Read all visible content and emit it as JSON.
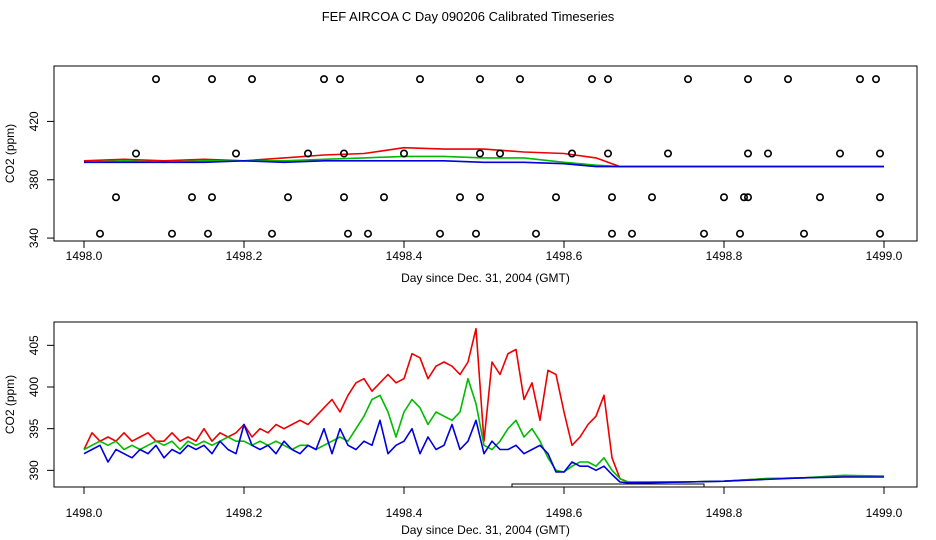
{
  "title": "FEF AIRCOA C  Day 090206  Calibrated Timeseries",
  "chart_data": [
    {
      "type": "line",
      "xlabel": "Day since Dec. 31, 2004 (GMT)",
      "ylabel": "CO2 (ppm)",
      "xlim": [
        1498.0,
        1499.0
      ],
      "ylim": [
        338,
        458
      ],
      "x_ticks": [
        "1498.0",
        "1498.2",
        "1498.4",
        "1498.6",
        "1498.8",
        "1499.0"
      ],
      "y_ticks": [
        "340",
        "380",
        "420"
      ],
      "colors": [
        "#ee0000",
        "#00bb00",
        "#0000dd"
      ],
      "series": [
        {
          "color": "#ee0000",
          "x": [
            1498.0,
            1498.05,
            1498.1,
            1498.15,
            1498.2,
            1498.25,
            1498.3,
            1498.35,
            1498.4,
            1498.45,
            1498.5,
            1498.55,
            1498.6,
            1498.64,
            1498.67,
            1498.7,
            1498.8,
            1498.9,
            1499.0
          ],
          "y": [
            393,
            394,
            393,
            394,
            393,
            395,
            397,
            398,
            402,
            401,
            401,
            399,
            398,
            395,
            389,
            389,
            389,
            389,
            389
          ]
        },
        {
          "color": "#00bb00",
          "x": [
            1498.0,
            1498.05,
            1498.1,
            1498.15,
            1498.2,
            1498.25,
            1498.3,
            1498.35,
            1498.4,
            1498.45,
            1498.5,
            1498.55,
            1498.6,
            1498.64,
            1498.67,
            1498.7,
            1498.8,
            1498.9,
            1499.0
          ],
          "y": [
            392,
            393,
            392,
            393,
            393,
            393,
            394,
            395,
            396,
            396,
            395,
            395,
            392,
            390,
            389,
            389,
            389,
            389,
            389
          ]
        },
        {
          "color": "#0000dd",
          "x": [
            1498.0,
            1498.05,
            1498.1,
            1498.15,
            1498.2,
            1498.25,
            1498.3,
            1498.35,
            1498.4,
            1498.45,
            1498.5,
            1498.55,
            1498.6,
            1498.64,
            1498.67,
            1498.7,
            1498.8,
            1498.9,
            1499.0
          ],
          "y": [
            392,
            392,
            392,
            392,
            393,
            392,
            393,
            393,
            393,
            393,
            392,
            392,
            391,
            389,
            389,
            389,
            389,
            389,
            389
          ]
        }
      ],
      "markers": {
        "style": "open-circle",
        "x": [
          1498.09,
          1498.16,
          1498.21,
          1498.3,
          1498.32,
          1498.42,
          1498.495,
          1498.545,
          1498.635,
          1498.655,
          1498.755,
          1498.83,
          1498.88,
          1498.97,
          1498.99,
          1498.065,
          1498.19,
          1498.28,
          1498.325,
          1498.4,
          1498.495,
          1498.52,
          1498.61,
          1498.655,
          1498.73,
          1498.83,
          1498.855,
          1498.945,
          1498.995,
          1498.04,
          1498.135,
          1498.16,
          1498.255,
          1498.325,
          1498.375,
          1498.47,
          1498.495,
          1498.59,
          1498.66,
          1498.71,
          1498.8,
          1498.825,
          1498.83,
          1498.92,
          1498.995,
          1498.02,
          1498.11,
          1498.155,
          1498.235,
          1498.33,
          1498.355,
          1498.445,
          1498.49,
          1498.565,
          1498.66,
          1498.685,
          1498.775,
          1498.82,
          1498.9,
          1498.995
        ],
        "y": [
          449,
          449,
          449,
          449,
          449,
          449,
          449,
          449,
          449,
          449,
          449,
          449,
          449,
          449,
          449,
          398,
          398,
          398,
          398,
          398,
          398,
          398,
          398,
          398,
          398,
          398,
          398,
          398,
          398,
          368,
          368,
          368,
          368,
          368,
          368,
          368,
          368,
          368,
          368,
          368,
          368,
          368,
          368,
          368,
          368,
          343,
          343,
          343,
          343,
          343,
          343,
          343,
          343,
          343,
          343,
          343,
          343,
          343,
          343,
          343
        ]
      }
    },
    {
      "type": "line",
      "xlabel": "Day since Dec. 31, 2004 (GMT)",
      "ylabel": "CO2 (ppm)",
      "xlim": [
        1498.0,
        1499.0
      ],
      "ylim": [
        388.0,
        407.8
      ],
      "x_ticks": [
        "1498.0",
        "1498.2",
        "1498.4",
        "1498.6",
        "1498.8",
        "1499.0"
      ],
      "y_ticks": [
        "390",
        "395",
        "400",
        "405"
      ],
      "colors": [
        "#ee0000",
        "#00bb00",
        "#0000dd"
      ],
      "series": [
        {
          "color": "#ee0000",
          "x": [
            1498.0,
            1498.01,
            1498.02,
            1498.03,
            1498.04,
            1498.05,
            1498.06,
            1498.07,
            1498.08,
            1498.09,
            1498.1,
            1498.11,
            1498.12,
            1498.13,
            1498.14,
            1498.15,
            1498.16,
            1498.17,
            1498.18,
            1498.19,
            1498.2,
            1498.21,
            1498.22,
            1498.23,
            1498.24,
            1498.25,
            1498.26,
            1498.27,
            1498.28,
            1498.29,
            1498.3,
            1498.31,
            1498.32,
            1498.33,
            1498.34,
            1498.35,
            1498.36,
            1498.37,
            1498.38,
            1498.39,
            1498.4,
            1498.41,
            1498.42,
            1498.43,
            1498.44,
            1498.45,
            1498.46,
            1498.47,
            1498.48,
            1498.49,
            1498.5,
            1498.51,
            1498.52,
            1498.53,
            1498.54,
            1498.55,
            1498.56,
            1498.57,
            1498.58,
            1498.59,
            1498.6,
            1498.61,
            1498.62,
            1498.63,
            1498.64,
            1498.65,
            1498.66,
            1498.67,
            1498.68,
            1498.7,
            1498.75,
            1498.8,
            1498.85,
            1498.9,
            1498.95,
            1499.0
          ],
          "y": [
            392.5,
            394.5,
            393.5,
            394,
            393.5,
            394.5,
            393.5,
            394,
            394.5,
            393.5,
            393.5,
            394.5,
            393.5,
            394,
            393.5,
            395,
            393.5,
            394.5,
            394,
            394.5,
            395.5,
            394,
            395,
            394.5,
            395.5,
            395,
            395.5,
            396,
            395.5,
            396.5,
            397.5,
            398.5,
            397,
            399,
            400.5,
            401,
            399.5,
            400.5,
            401.5,
            400.5,
            401,
            404,
            403.5,
            401,
            402.5,
            403,
            402.5,
            401.5,
            403,
            407,
            393.5,
            403,
            401.5,
            404,
            404.5,
            398.5,
            400.5,
            396,
            402,
            401.5,
            397,
            393,
            394,
            395.5,
            396.5,
            399,
            391.5,
            389,
            388.6,
            388.6,
            388.6,
            388.7,
            389,
            389.1,
            389.3,
            389.3
          ]
        },
        {
          "color": "#00bb00",
          "x": [
            1498.0,
            1498.01,
            1498.02,
            1498.03,
            1498.04,
            1498.05,
            1498.06,
            1498.07,
            1498.08,
            1498.09,
            1498.1,
            1498.11,
            1498.12,
            1498.13,
            1498.14,
            1498.15,
            1498.16,
            1498.17,
            1498.18,
            1498.19,
            1498.2,
            1498.21,
            1498.22,
            1498.23,
            1498.24,
            1498.25,
            1498.26,
            1498.27,
            1498.28,
            1498.29,
            1498.3,
            1498.31,
            1498.32,
            1498.33,
            1498.34,
            1498.35,
            1498.36,
            1498.37,
            1498.38,
            1498.39,
            1498.4,
            1498.41,
            1498.42,
            1498.43,
            1498.44,
            1498.45,
            1498.46,
            1498.47,
            1498.48,
            1498.49,
            1498.5,
            1498.51,
            1498.52,
            1498.53,
            1498.54,
            1498.55,
            1498.56,
            1498.57,
            1498.58,
            1498.59,
            1498.6,
            1498.61,
            1498.62,
            1498.63,
            1498.64,
            1498.65,
            1498.66,
            1498.67,
            1498.68,
            1498.7,
            1498.75,
            1498.8,
            1498.85,
            1498.9,
            1498.95,
            1499.0
          ],
          "y": [
            392.5,
            393,
            393.5,
            393,
            393.5,
            392.5,
            393,
            392.5,
            393,
            393.5,
            393,
            393.5,
            392.5,
            393.5,
            393,
            393.5,
            393,
            393.5,
            394,
            393.5,
            393.5,
            393,
            393.5,
            393,
            393.5,
            393,
            392.5,
            393,
            393,
            392.5,
            393,
            393.5,
            394,
            393.5,
            395,
            396.5,
            398.5,
            399,
            397,
            394,
            397,
            398.5,
            397.5,
            395.5,
            397,
            396.5,
            396,
            397,
            401,
            398,
            393,
            392.5,
            393.5,
            395,
            396,
            394,
            395,
            393.5,
            391.5,
            390,
            389.8,
            390.5,
            391,
            391,
            390.5,
            391.5,
            390,
            389,
            388.6,
            388.6,
            388.6,
            388.7,
            389,
            389.1,
            389.4,
            389.3
          ]
        },
        {
          "color": "#0000dd",
          "x": [
            1498.0,
            1498.01,
            1498.02,
            1498.03,
            1498.04,
            1498.05,
            1498.06,
            1498.07,
            1498.08,
            1498.09,
            1498.1,
            1498.11,
            1498.12,
            1498.13,
            1498.14,
            1498.15,
            1498.16,
            1498.17,
            1498.18,
            1498.19,
            1498.2,
            1498.21,
            1498.22,
            1498.23,
            1498.24,
            1498.25,
            1498.26,
            1498.27,
            1498.28,
            1498.29,
            1498.3,
            1498.31,
            1498.32,
            1498.33,
            1498.34,
            1498.35,
            1498.36,
            1498.37,
            1498.38,
            1498.39,
            1498.4,
            1498.41,
            1498.42,
            1498.43,
            1498.44,
            1498.45,
            1498.46,
            1498.47,
            1498.48,
            1498.49,
            1498.5,
            1498.51,
            1498.52,
            1498.53,
            1498.54,
            1498.55,
            1498.56,
            1498.57,
            1498.58,
            1498.59,
            1498.6,
            1498.61,
            1498.62,
            1498.63,
            1498.64,
            1498.65,
            1498.66,
            1498.67,
            1498.68,
            1498.7,
            1498.75,
            1498.8,
            1498.85,
            1498.9,
            1498.95,
            1499.0
          ],
          "y": [
            392,
            392.5,
            393,
            391,
            392.5,
            392,
            391.5,
            392.5,
            392,
            393,
            391.5,
            392.5,
            392,
            393,
            392.5,
            393,
            392,
            393.5,
            392.5,
            392,
            395.5,
            393,
            392.5,
            393,
            392,
            393.5,
            392.5,
            392,
            393,
            392.5,
            395,
            392,
            395,
            393,
            392.5,
            393.5,
            393,
            396,
            392,
            393,
            393.5,
            395,
            392,
            394,
            392.5,
            393,
            395.5,
            392.5,
            393.5,
            396,
            392,
            393.5,
            392.5,
            392.5,
            393,
            392,
            392.5,
            393,
            392,
            389.8,
            389.8,
            391,
            390.5,
            390.5,
            390,
            390.5,
            389.5,
            388.6,
            388.5,
            388.5,
            388.6,
            388.7,
            388.9,
            389.1,
            389.2,
            389.2
          ]
        }
      ],
      "flag_bar": {
        "x_start": 1498.535,
        "x_end": 1498.775,
        "y": 388.0
      }
    }
  ]
}
